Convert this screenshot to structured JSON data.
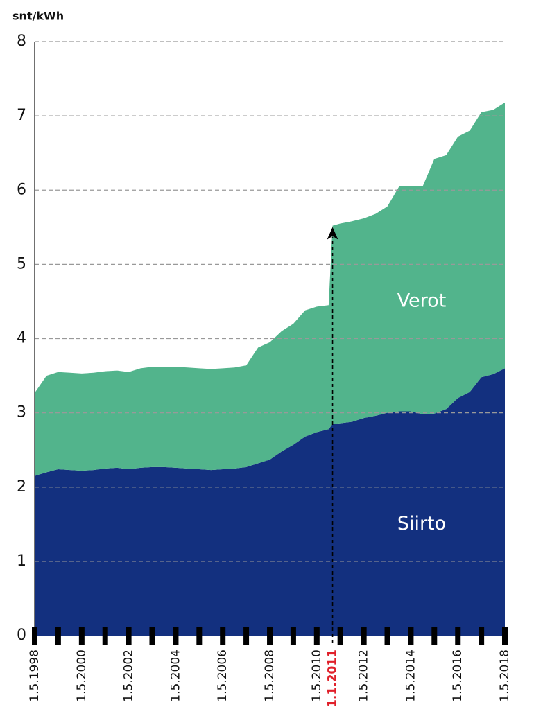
{
  "chart_data": {
    "type": "stacked_area",
    "y_label": "snt/kWh",
    "x": [
      "1998-05-01",
      "1998-11-01",
      "1999-05-01",
      "1999-11-01",
      "2000-05-01",
      "2000-11-01",
      "2001-05-01",
      "2001-11-01",
      "2002-05-01",
      "2002-11-01",
      "2003-05-01",
      "2003-11-01",
      "2004-05-01",
      "2004-11-01",
      "2005-05-01",
      "2005-11-01",
      "2006-05-01",
      "2006-11-01",
      "2007-05-01",
      "2007-11-01",
      "2008-05-01",
      "2008-11-01",
      "2009-05-01",
      "2009-11-01",
      "2010-05-01",
      "2010-11-01",
      "2011-01-01",
      "2011-05-01",
      "2011-11-01",
      "2012-05-01",
      "2012-11-01",
      "2013-05-01",
      "2013-11-01",
      "2014-05-01",
      "2014-11-01",
      "2015-05-01",
      "2015-11-01",
      "2016-05-01",
      "2016-11-01",
      "2017-05-01",
      "2017-11-01",
      "2018-05-01"
    ],
    "series": [
      {
        "name": "Siirto",
        "color": "#13307f",
        "values": [
          2.15,
          2.2,
          2.24,
          2.23,
          2.22,
          2.23,
          2.25,
          2.26,
          2.24,
          2.26,
          2.27,
          2.27,
          2.26,
          2.25,
          2.24,
          2.23,
          2.24,
          2.25,
          2.27,
          2.32,
          2.37,
          2.48,
          2.57,
          2.68,
          2.74,
          2.78,
          2.85,
          2.86,
          2.88,
          2.93,
          2.96,
          3.0,
          3.02,
          3.02,
          2.98,
          2.99,
          3.05,
          3.2,
          3.28,
          3.48,
          3.52,
          3.6
        ]
      },
      {
        "name": "Verot",
        "color": "#52b48c",
        "values": [
          1.12,
          1.3,
          1.31,
          1.31,
          1.31,
          1.31,
          1.31,
          1.31,
          1.31,
          1.34,
          1.35,
          1.35,
          1.36,
          1.36,
          1.36,
          1.36,
          1.36,
          1.36,
          1.37,
          1.56,
          1.58,
          1.62,
          1.63,
          1.7,
          1.69,
          1.67,
          2.67,
          2.69,
          2.7,
          2.69,
          2.72,
          2.78,
          3.03,
          3.03,
          3.07,
          3.43,
          3.42,
          3.52,
          3.52,
          3.57,
          3.56,
          3.58
        ]
      }
    ],
    "xlim": [
      "1998-05-01",
      "2018-05-01"
    ],
    "xticks": [
      {
        "value": "1998-05-01",
        "label": "1.5.1998"
      },
      {
        "value": "2000-05-01",
        "label": "1.5.2000"
      },
      {
        "value": "2002-05-01",
        "label": "1.5.2002"
      },
      {
        "value": "2004-05-01",
        "label": "1.5.2004"
      },
      {
        "value": "2006-05-01",
        "label": "1.5.2006"
      },
      {
        "value": "2008-05-01",
        "label": "1.5.2008"
      },
      {
        "value": "2010-05-01",
        "label": "1.5.2010"
      },
      {
        "value": "2012-05-01",
        "label": "1.5.2012"
      },
      {
        "value": "2014-05-01",
        "label": "1.5.2014"
      },
      {
        "value": "2016-05-01",
        "label": "1.5.2016"
      },
      {
        "value": "2018-05-01",
        "label": "1.5.2018"
      }
    ],
    "xminor_ticks": [
      "1998-05-01",
      "1999-05-01",
      "2000-05-01",
      "2001-05-01",
      "2002-05-01",
      "2003-05-01",
      "2004-05-01",
      "2005-05-01",
      "2006-05-01",
      "2007-05-01",
      "2008-05-01",
      "2009-05-01",
      "2010-05-01",
      "2011-05-01",
      "2012-05-01",
      "2013-05-01",
      "2014-05-01",
      "2015-05-01",
      "2016-05-01",
      "2017-05-01",
      "2018-05-01"
    ],
    "ylim": [
      0,
      8
    ],
    "yticks": [
      0,
      1,
      2,
      3,
      4,
      5,
      6,
      7,
      8
    ],
    "grid": true,
    "annotation": {
      "x": {
        "value": "2011-01-01",
        "label": "1.1.2011"
      },
      "color": "#e0202a"
    }
  }
}
